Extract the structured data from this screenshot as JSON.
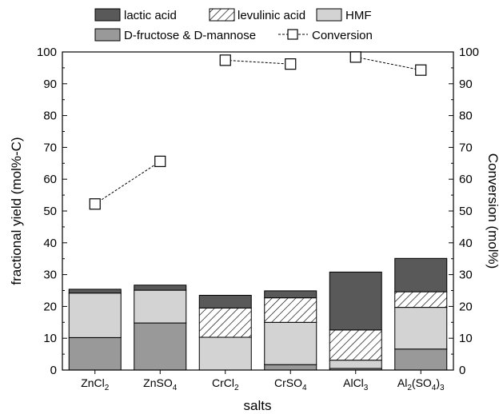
{
  "chart_data": {
    "type": "bar",
    "stacked": true,
    "categories": [
      "ZnCl2",
      "ZnSO4",
      "CrCl2",
      "CrSO4",
      "AlCl3",
      "Al2(SO4)3"
    ],
    "category_labels": [
      [
        {
          "t": "ZnCl"
        },
        {
          "t": "2",
          "sub": true
        }
      ],
      [
        {
          "t": "ZnSO"
        },
        {
          "t": "4",
          "sub": true
        }
      ],
      [
        {
          "t": "CrCl"
        },
        {
          "t": "2",
          "sub": true
        }
      ],
      [
        {
          "t": "CrSO"
        },
        {
          "t": "4",
          "sub": true
        }
      ],
      [
        {
          "t": "AlCl"
        },
        {
          "t": "3",
          "sub": true
        }
      ],
      [
        {
          "t": "Al"
        },
        {
          "t": "2",
          "sub": true
        },
        {
          "t": "(SO"
        },
        {
          "t": "4",
          "sub": true
        },
        {
          "t": ")"
        },
        {
          "t": "3",
          "sub": true
        }
      ]
    ],
    "series": [
      {
        "name": "D-fructose & D-mannose",
        "values": [
          10.2,
          14.8,
          0,
          1.7,
          0.5,
          6.6
        ],
        "color": "#999999",
        "pattern": "solid"
      },
      {
        "name": "HMF",
        "values": [
          14.0,
          10.3,
          10.3,
          13.3,
          2.6,
          13.1
        ],
        "color": "#d3d3d3",
        "pattern": "solid"
      },
      {
        "name": "levulinic acid",
        "values": [
          0,
          0,
          9.2,
          7.7,
          9.5,
          4.9
        ],
        "color": "#ffffff",
        "pattern": "hatch"
      },
      {
        "name": "lactic acid",
        "values": [
          1.2,
          1.6,
          4.0,
          2.2,
          18.2,
          10.5
        ],
        "color": "#595959",
        "pattern": "solid"
      }
    ],
    "line_series": {
      "name": "Conversion",
      "values": [
        52.2,
        65.6,
        97.4,
        96.2,
        98.4,
        94.3
      ],
      "marker": "open-square",
      "linestyle": "dashed"
    },
    "xlabel": "salts",
    "ylabel": "fractional yield (mol%-C)",
    "y2label": "Conversion (mol%)",
    "ylim": [
      0,
      100
    ],
    "y2lim": [
      0,
      100
    ],
    "yticks": [
      0,
      10,
      20,
      30,
      40,
      50,
      60,
      70,
      80,
      90,
      100
    ],
    "legend_position": "top"
  }
}
